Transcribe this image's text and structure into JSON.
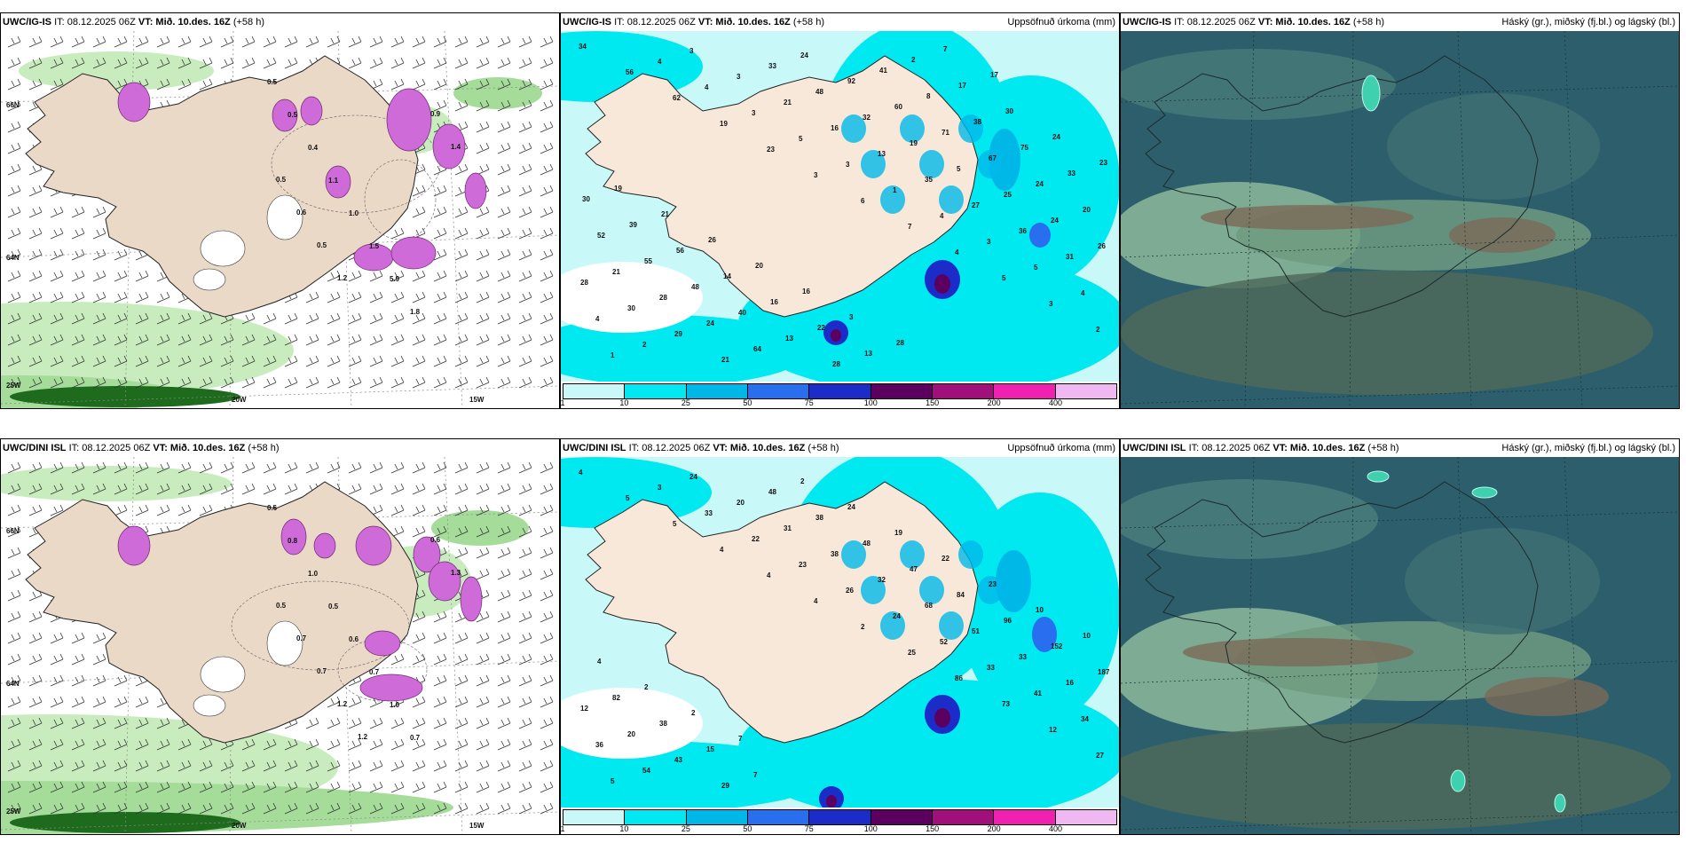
{
  "panels": [
    {
      "model": "UWC/IG-IS",
      "it": "IT: 08.12.2025 06Z",
      "vt": "VT: Mið. 10.des. 16Z",
      "lead": "(+58 h)",
      "title": ""
    },
    {
      "model": "UWC/IG-IS",
      "it": "IT: 08.12.2025 06Z",
      "vt": "VT: Mið. 10.des. 16Z",
      "lead": "(+58 h)",
      "title": "Uppsöfnuð úrkoma (mm)"
    },
    {
      "model": "UWC/IG-IS",
      "it": "IT: 08.12.2025 06Z",
      "vt": "VT: Mið. 10.des. 16Z",
      "lead": "(+58 h)",
      "title": "Háský (gr.), miðský (fj.bl.) og lágský (bl.)"
    },
    {
      "model": "UWC/DINI ISL",
      "it": "IT: 08.12.2025 06Z",
      "vt": "VT: Mið. 10.des. 16Z",
      "lead": "(+58 h)",
      "title": ""
    },
    {
      "model": "UWC/DINI ISL",
      "it": "IT: 08.12.2025 06Z",
      "vt": "VT: Mið. 10.des. 16Z",
      "lead": "(+58 h)",
      "title": "Uppsöfnuð úrkoma (mm)"
    },
    {
      "model": "UWC/DINI ISL",
      "it": "IT: 08.12.2025 06Z",
      "vt": "VT: Mið. 10.des. 16Z",
      "lead": "(+58 h)",
      "title": "Háský (gr.), miðský (fj.bl.) og lágský (bl.)"
    }
  ],
  "gridlabels": {
    "lon": [
      "25W",
      "20W",
      "15W"
    ],
    "lat": [
      "66N",
      "64N"
    ]
  },
  "colorbar": {
    "ticks": [
      "1",
      "10",
      "25",
      "50",
      "75",
      "100",
      "150",
      "200",
      "400"
    ],
    "colors": [
      "#c8f8f8",
      "#00e8f0",
      "#00b8e8",
      "#2a6ef0",
      "#1c2cc8",
      "#5c0060",
      "#a0107c",
      "#f020b0",
      "#f0b8f0"
    ]
  },
  "precip_labels_top": [
    "34",
    "56",
    "62",
    "19",
    "23",
    "3",
    "6",
    "7",
    "4",
    "5",
    "3",
    "2",
    "1",
    "4",
    "4",
    "3",
    "5",
    "3",
    "1",
    "4",
    "3",
    "5",
    "4",
    "4",
    "2",
    "3",
    "3",
    "21",
    "16",
    "13",
    "35",
    "27",
    "36",
    "31",
    "28",
    "30",
    "29",
    "21",
    "33",
    "48",
    "32",
    "19",
    "5",
    "25",
    "24",
    "26",
    "21",
    "28",
    "24",
    "64",
    "24",
    "92",
    "60",
    "71",
    "67",
    "24",
    "20",
    "52",
    "55",
    "48",
    "40",
    "13",
    "28",
    "41",
    "8",
    "38",
    "75",
    "33",
    "30",
    "39",
    "56",
    "14",
    "16",
    "22",
    "13",
    "2",
    "17",
    "30",
    "24",
    "23",
    "19",
    "21",
    "26",
    "20",
    "16",
    "3",
    "28",
    "7",
    "17"
  ],
  "precip_labels_bottom": [
    "4",
    "5",
    "5",
    "4",
    "4",
    "4",
    "2",
    "25",
    "86",
    "73",
    "12",
    "27",
    "5",
    "3",
    "33",
    "22",
    "23",
    "26",
    "24",
    "52",
    "33",
    "41",
    "34",
    "36",
    "54",
    "24",
    "20",
    "31",
    "38",
    "32",
    "68",
    "51",
    "33",
    "16",
    "12",
    "20",
    "43",
    "29",
    "48",
    "38",
    "48",
    "47",
    "84",
    "96",
    "152",
    "187",
    "82",
    "38",
    "15",
    "7",
    "2",
    "24",
    "19",
    "22",
    "23",
    "10",
    "10",
    "4",
    "2",
    "2",
    "7"
  ],
  "thin_labels_top": [
    "0.5",
    "0.5",
    "0.4",
    "1.1",
    "1.0",
    "1.5",
    "5.9",
    "1.8",
    "0.9",
    "1.4",
    "0.5",
    "0.6",
    "0.5",
    "1.2"
  ],
  "thin_labels_bottom": [
    "0.6",
    "0.8",
    "1.0",
    "0.5",
    "0.6",
    "0.7",
    "1.0",
    "0.7",
    "0.6",
    "1.3",
    "0.5",
    "0.7",
    "0.7",
    "1.2",
    "1.2"
  ]
}
